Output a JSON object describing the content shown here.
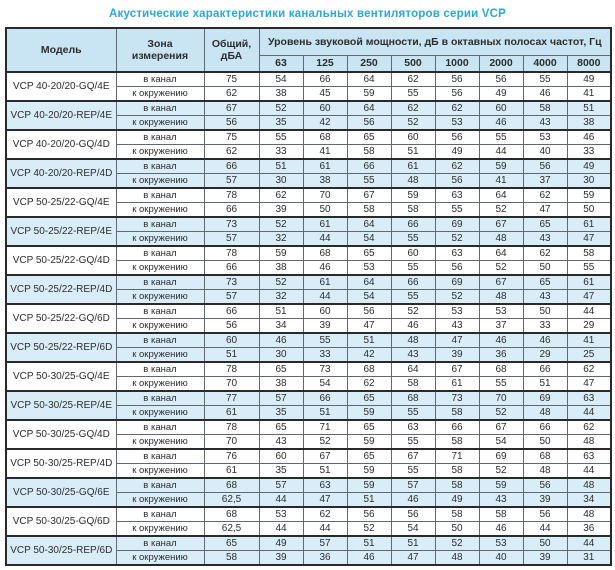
{
  "title": "Акустические характеристики канальных вентиляторов  серии VCP",
  "table": {
    "headers": {
      "model": "Модель",
      "zone": "Зона измерения",
      "total": "Общий, дБА",
      "level_group": "Уровень звуковой мощности, дБ в октавных полосах частот, Гц",
      "frequencies": [
        "63",
        "125",
        "250",
        "500",
        "1000",
        "2000",
        "4000",
        "8000"
      ]
    },
    "zone_labels": [
      "в канал",
      "к окружению"
    ],
    "colors": {
      "title_blue": "#29a7e0",
      "header_bg": "#c9e5f4",
      "shaded_row_bg": "#d9edf8",
      "grid_line": "#5f6a70",
      "block_line": "#2a2a2a"
    },
    "rows": [
      {
        "model": "VCP 40-20/20-GQ/4E",
        "shaded": false,
        "in_duct": {
          "total": "75",
          "levels": [
            "54",
            "66",
            "64",
            "62",
            "56",
            "56",
            "55",
            "49"
          ]
        },
        "to_env": {
          "total": "62",
          "levels": [
            "38",
            "45",
            "59",
            "55",
            "56",
            "49",
            "46",
            "41"
          ]
        }
      },
      {
        "model": "VCP 40-20/20-REP/4E",
        "shaded": true,
        "in_duct": {
          "total": "67",
          "levels": [
            "52",
            "60",
            "64",
            "62",
            "62",
            "60",
            "58",
            "51"
          ]
        },
        "to_env": {
          "total": "56",
          "levels": [
            "35",
            "42",
            "56",
            "52",
            "53",
            "46",
            "43",
            "38"
          ]
        }
      },
      {
        "model": "VCP 40-20/20-GQ/4D",
        "shaded": false,
        "in_duct": {
          "total": "75",
          "levels": [
            "55",
            "68",
            "65",
            "60",
            "56",
            "55",
            "53",
            "46"
          ]
        },
        "to_env": {
          "total": "62",
          "levels": [
            "33",
            "41",
            "58",
            "51",
            "49",
            "44",
            "40",
            "33"
          ]
        }
      },
      {
        "model": "VCP 40-20/20-REP/4D",
        "shaded": true,
        "in_duct": {
          "total": "66",
          "levels": [
            "51",
            "61",
            "66",
            "61",
            "62",
            "59",
            "56",
            "49"
          ]
        },
        "to_env": {
          "total": "57",
          "levels": [
            "30",
            "38",
            "55",
            "48",
            "56",
            "41",
            "37",
            "30"
          ]
        }
      },
      {
        "model": "VCP 50-25/22-GQ/4E",
        "shaded": false,
        "in_duct": {
          "total": "78",
          "levels": [
            "62",
            "70",
            "67",
            "59",
            "63",
            "64",
            "62",
            "59"
          ]
        },
        "to_env": {
          "total": "66",
          "levels": [
            "39",
            "50",
            "58",
            "58",
            "55",
            "52",
            "47",
            "50"
          ]
        }
      },
      {
        "model": "VCP 50-25/22-REP/4E",
        "shaded": true,
        "in_duct": {
          "total": "73",
          "levels": [
            "52",
            "61",
            "64",
            "66",
            "69",
            "67",
            "65",
            "61"
          ]
        },
        "to_env": {
          "total": "57",
          "levels": [
            "32",
            "44",
            "54",
            "55",
            "52",
            "48",
            "43",
            "47"
          ]
        }
      },
      {
        "model": "VCP 50-25/22-GQ/4D",
        "shaded": false,
        "in_duct": {
          "total": "78",
          "levels": [
            "59",
            "68",
            "65",
            "60",
            "63",
            "64",
            "62",
            "58"
          ]
        },
        "to_env": {
          "total": "66",
          "levels": [
            "38",
            "46",
            "53",
            "55",
            "56",
            "52",
            "50",
            "55"
          ]
        }
      },
      {
        "model": "VCP 50-25/22-REP/4D",
        "shaded": true,
        "in_duct": {
          "total": "73",
          "levels": [
            "52",
            "61",
            "64",
            "66",
            "69",
            "67",
            "65",
            "61"
          ]
        },
        "to_env": {
          "total": "57",
          "levels": [
            "32",
            "44",
            "54",
            "55",
            "52",
            "48",
            "43",
            "47"
          ]
        }
      },
      {
        "model": "VCP 50-25/22-GQ/6D",
        "shaded": false,
        "in_duct": {
          "total": "66",
          "levels": [
            "51",
            "60",
            "56",
            "52",
            "53",
            "53",
            "50",
            "44"
          ]
        },
        "to_env": {
          "total": "56",
          "levels": [
            "34",
            "39",
            "47",
            "46",
            "43",
            "37",
            "33",
            "29"
          ]
        }
      },
      {
        "model": "VCP 50-25/22-REP/6D",
        "shaded": true,
        "in_duct": {
          "total": "60",
          "levels": [
            "46",
            "55",
            "51",
            "48",
            "47",
            "46",
            "46",
            "41"
          ]
        },
        "to_env": {
          "total": "51",
          "levels": [
            "30",
            "33",
            "42",
            "43",
            "39",
            "36",
            "29",
            "25"
          ]
        }
      },
      {
        "model": "VCP 50-30/25-GQ/4E",
        "shaded": false,
        "in_duct": {
          "total": "78",
          "levels": [
            "65",
            "73",
            "68",
            "64",
            "67",
            "68",
            "66",
            "62"
          ]
        },
        "to_env": {
          "total": "70",
          "levels": [
            "38",
            "54",
            "62",
            "58",
            "61",
            "55",
            "51",
            "47"
          ]
        }
      },
      {
        "model": "VCP 50-30/25-REP/4E",
        "shaded": true,
        "in_duct": {
          "total": "77",
          "levels": [
            "57",
            "66",
            "65",
            "68",
            "73",
            "70",
            "69",
            "63"
          ]
        },
        "to_env": {
          "total": "61",
          "levels": [
            "35",
            "51",
            "59",
            "55",
            "58",
            "52",
            "48",
            "44"
          ]
        }
      },
      {
        "model": "VCP 50-30/25-GQ/4D",
        "shaded": false,
        "in_duct": {
          "total": "78",
          "levels": [
            "65",
            "71",
            "65",
            "63",
            "66",
            "67",
            "66",
            "62"
          ]
        },
        "to_env": {
          "total": "70",
          "levels": [
            "43",
            "52",
            "59",
            "55",
            "58",
            "54",
            "50",
            "48"
          ]
        }
      },
      {
        "model": "VCP 50-30/25-REP/4D",
        "shaded": false,
        "in_duct": {
          "total": "76",
          "levels": [
            "60",
            "67",
            "65",
            "67",
            "71",
            "69",
            "68",
            "63"
          ]
        },
        "to_env": {
          "total": "61",
          "levels": [
            "35",
            "51",
            "59",
            "55",
            "58",
            "52",
            "48",
            "44"
          ]
        }
      },
      {
        "model": "VCP 50-30/25-GQ/6E",
        "shaded": true,
        "in_duct": {
          "total": "68",
          "levels": [
            "57",
            "63",
            "59",
            "57",
            "58",
            "59",
            "56",
            "48"
          ]
        },
        "to_env": {
          "total": "62,5",
          "levels": [
            "44",
            "47",
            "51",
            "46",
            "49",
            "43",
            "39",
            "34"
          ]
        }
      },
      {
        "model": "VCP 50-30/25-GQ/6D",
        "shaded": false,
        "in_duct": {
          "total": "68",
          "levels": [
            "53",
            "62",
            "56",
            "56",
            "58",
            "58",
            "56",
            "48"
          ]
        },
        "to_env": {
          "total": "62,5",
          "levels": [
            "44",
            "44",
            "52",
            "54",
            "50",
            "46",
            "44",
            "36"
          ]
        }
      },
      {
        "model": "VCP 50-30/25-REP/6D",
        "shaded": true,
        "in_duct": {
          "total": "65",
          "levels": [
            "49",
            "57",
            "51",
            "51",
            "52",
            "53",
            "50",
            "44"
          ]
        },
        "to_env": {
          "total": "58",
          "levels": [
            "39",
            "36",
            "46",
            "47",
            "48",
            "40",
            "39",
            "31"
          ]
        }
      }
    ]
  }
}
